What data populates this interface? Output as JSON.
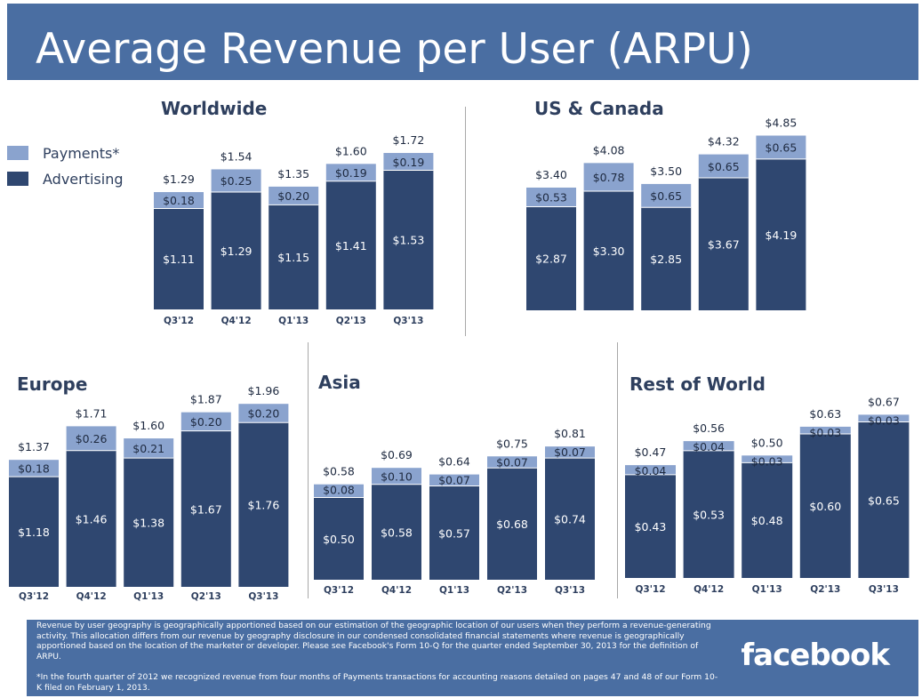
{
  "title": "Average Revenue per User (ARPU)",
  "legend": {
    "items": [
      {
        "label": "Payments*",
        "color": "#8aa3ce"
      },
      {
        "label": "Advertising",
        "color": "#2f4770"
      }
    ]
  },
  "colors": {
    "payments": "#8aa3ce",
    "advertising": "#2f4770",
    "axis_text": "#2e3f5e",
    "header_bg": "#4a6ea2"
  },
  "footer": {
    "text": "Revenue by user geography is geographically apportioned based on our estimation of the geographic location of our users when they perform a revenue-generating activity. This allocation differs from our revenue by geography disclosure in our condensed consolidated financial statements where revenue is geographically apportioned based on the location of the marketer or developer. Please see Facebook's Form 10-Q for the quarter ended September 30, 2013 for the definition of ARPU.",
    "note": "*In the fourth quarter of 2012 we recognized revenue from four months of Payments transactions for accounting reasons detailed on pages 47 and 48 of our Form 10-K filed on February 1, 2013.",
    "logo": "facebook"
  },
  "chart_data": [
    {
      "type": "bar",
      "stacked": true,
      "title": "Worldwide",
      "categories": [
        "Q3'12",
        "Q4'12",
        "Q1'13",
        "Q2'13",
        "Q3'13"
      ],
      "series": [
        {
          "name": "Advertising",
          "values": [
            1.11,
            1.29,
            1.15,
            1.41,
            1.53
          ],
          "labels": [
            "$1.11",
            "$1.29",
            "$1.15",
            "$1.41",
            "$1.53"
          ]
        },
        {
          "name": "Payments*",
          "values": [
            0.18,
            0.25,
            0.2,
            0.19,
            0.19
          ],
          "labels": [
            "$0.18",
            "$0.25",
            "$0.20",
            "$0.19",
            "$0.19"
          ]
        }
      ],
      "totals": [
        "$1.29",
        "$1.54",
        "$1.35",
        "$1.60",
        "$1.72"
      ]
    },
    {
      "type": "bar",
      "stacked": true,
      "title": "US & Canada",
      "categories": [
        "Q3'12",
        "Q4'12",
        "Q1'13",
        "Q2'13",
        "Q3'13"
      ],
      "series": [
        {
          "name": "Advertising",
          "values": [
            2.87,
            3.3,
            2.85,
            3.67,
            4.19
          ],
          "labels": [
            "$2.87",
            "$3.30",
            "$2.85",
            "$3.67",
            "$4.19"
          ]
        },
        {
          "name": "Payments*",
          "values": [
            0.53,
            0.78,
            0.65,
            0.65,
            0.65
          ],
          "labels": [
            "$0.53",
            "$0.78",
            "$0.65",
            "$0.65",
            "$0.65"
          ]
        }
      ],
      "totals": [
        "$3.40",
        "$4.08",
        "$3.50",
        "$4.32",
        "$4.85"
      ]
    },
    {
      "type": "bar",
      "stacked": true,
      "title": "Europe",
      "categories": [
        "Q3'12",
        "Q4'12",
        "Q1'13",
        "Q2'13",
        "Q3'13"
      ],
      "series": [
        {
          "name": "Advertising",
          "values": [
            1.18,
            1.46,
            1.38,
            1.67,
            1.76
          ],
          "labels": [
            "$1.18",
            "$1.46",
            "$1.38",
            "$1.67",
            "$1.76"
          ]
        },
        {
          "name": "Payments*",
          "values": [
            0.18,
            0.26,
            0.21,
            0.2,
            0.2
          ],
          "labels": [
            "$0.18",
            "$0.26",
            "$0.21",
            "$0.20",
            "$0.20"
          ]
        }
      ],
      "totals": [
        "$1.37",
        "$1.71",
        "$1.60",
        "$1.87",
        "$1.96"
      ]
    },
    {
      "type": "bar",
      "stacked": true,
      "title": "Asia",
      "categories": [
        "Q3'12",
        "Q4'12",
        "Q1'13",
        "Q2'13",
        "Q3'13"
      ],
      "series": [
        {
          "name": "Advertising",
          "values": [
            0.5,
            0.58,
            0.57,
            0.68,
            0.74
          ],
          "labels": [
            "$0.50",
            "$0.58",
            "$0.57",
            "$0.68",
            "$0.74"
          ]
        },
        {
          "name": "Payments*",
          "values": [
            0.08,
            0.1,
            0.07,
            0.07,
            0.07
          ],
          "labels": [
            "$0.08",
            "$0.10",
            "$0.07",
            "$0.07",
            "$0.07"
          ]
        }
      ],
      "totals": [
        "$0.58",
        "$0.69",
        "$0.64",
        "$0.75",
        "$0.81"
      ]
    },
    {
      "type": "bar",
      "stacked": true,
      "title": "Rest of World",
      "categories": [
        "Q3'12",
        "Q4'12",
        "Q1'13",
        "Q2'13",
        "Q3'13"
      ],
      "series": [
        {
          "name": "Advertising",
          "values": [
            0.43,
            0.53,
            0.48,
            0.6,
            0.65
          ],
          "labels": [
            "$0.43",
            "$0.53",
            "$0.48",
            "$0.60",
            "$0.65"
          ]
        },
        {
          "name": "Payments*",
          "values": [
            0.04,
            0.04,
            0.03,
            0.03,
            0.03
          ],
          "labels": [
            "$0.04",
            "$0.04",
            "$0.03",
            "$0.03",
            "$0.03"
          ]
        }
      ],
      "totals": [
        "$0.47",
        "$0.56",
        "$0.50",
        "$0.63",
        "$0.67"
      ]
    }
  ]
}
